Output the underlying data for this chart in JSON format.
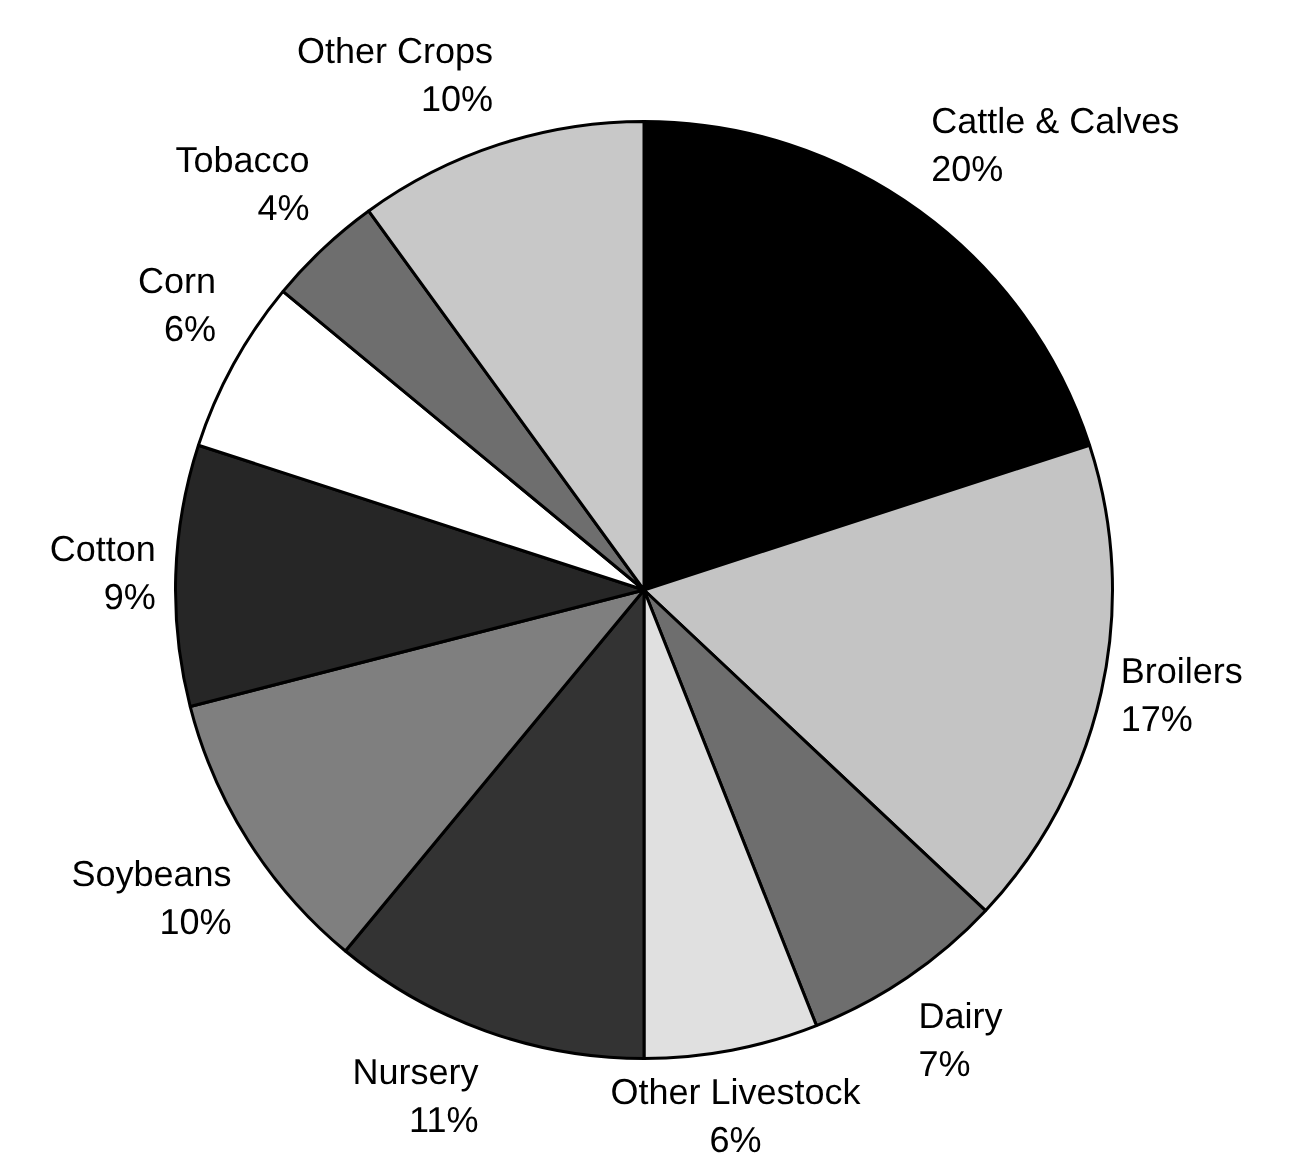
{
  "chart_data": {
    "type": "pie",
    "categories": [
      "Cattle & Calves",
      "Broilers",
      "Dairy",
      "Other Livestock",
      "Nursery",
      "Soybeans",
      "Cotton",
      "Corn",
      "Tobacco",
      "Other Crops"
    ],
    "values": [
      20,
      17,
      7,
      6,
      11,
      10,
      9,
      6,
      4,
      10
    ],
    "value_labels": [
      "20%",
      "17%",
      "7%",
      "6%",
      "11%",
      "10%",
      "9%",
      "6%",
      "4%",
      "10%"
    ],
    "colors": [
      "#000000",
      "#c4c4c4",
      "#6e6e6e",
      "#e0e0e0",
      "#333333",
      "#7f7f7f",
      "#262626",
      "#ffffff",
      "#6e6e6e",
      "#c8c8c8"
    ],
    "legend": false
  }
}
